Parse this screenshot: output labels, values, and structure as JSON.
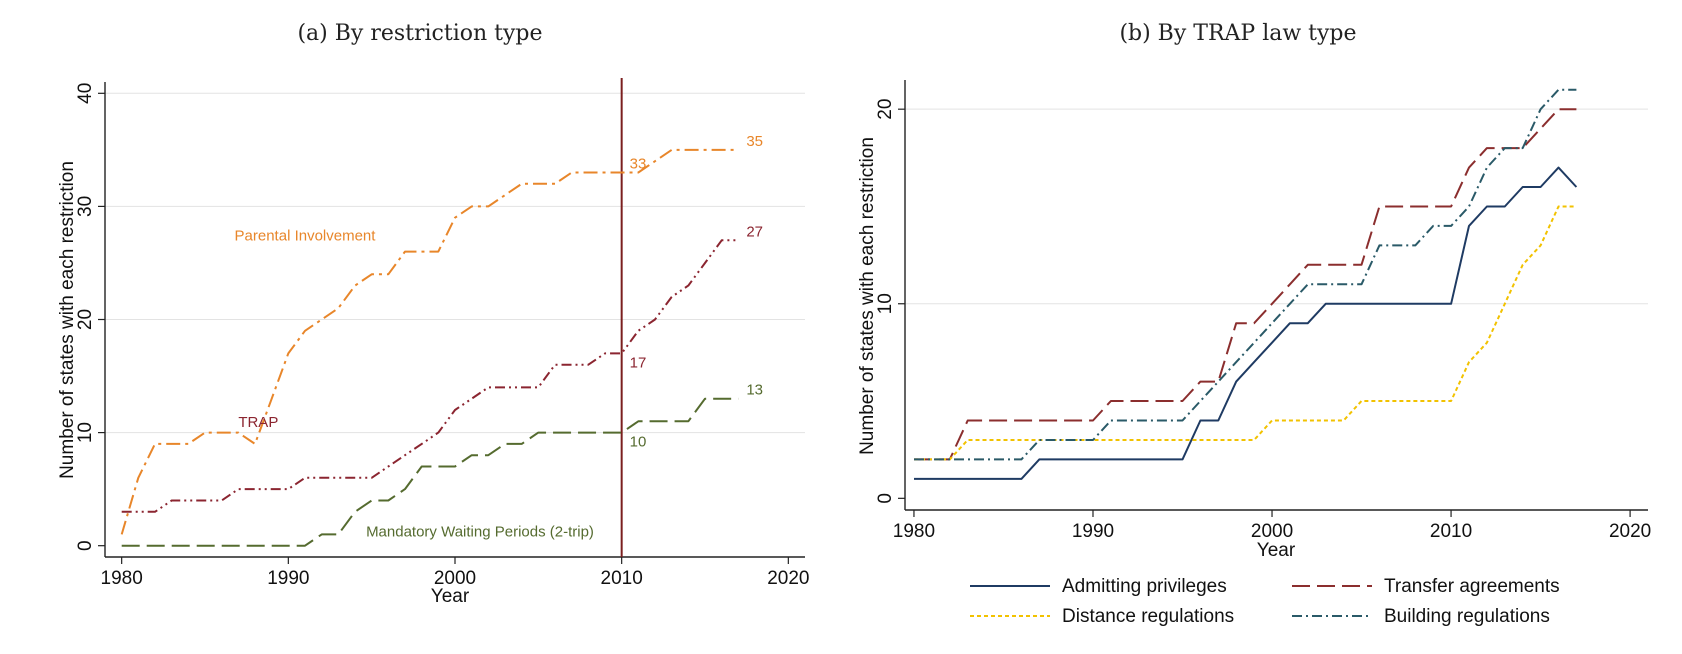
{
  "chart_data": [
    {
      "type": "line",
      "title": "(a) By restriction type",
      "xlabel": "Year",
      "ylabel": "Number of states with each restriction",
      "xlim": [
        1979,
        2021
      ],
      "ylim": [
        -1,
        41
      ],
      "xticks": [
        1980,
        1990,
        2000,
        2010,
        2020
      ],
      "yticks": [
        0,
        10,
        20,
        30,
        40
      ],
      "grid": "horizontal",
      "vline": 2010,
      "vline_color": "#7b1f1f",
      "x": [
        1980,
        1981,
        1982,
        1983,
        1984,
        1985,
        1986,
        1987,
        1988,
        1989,
        1990,
        1991,
        1992,
        1993,
        1994,
        1995,
        1996,
        1997,
        1998,
        1999,
        2000,
        2001,
        2002,
        2003,
        2004,
        2005,
        2006,
        2007,
        2008,
        2009,
        2010,
        2011,
        2012,
        2013,
        2014,
        2015,
        2016,
        2017
      ],
      "series": [
        {
          "name": "Parental Involvement",
          "color": "#e8862a",
          "dash": "long-dash-dot",
          "values": [
            1,
            6,
            9,
            9,
            9,
            10,
            10,
            10,
            9,
            13,
            17,
            19,
            20,
            21,
            23,
            24,
            24,
            26,
            26,
            26,
            29,
            30,
            30,
            31,
            32,
            32,
            32,
            33,
            33,
            33,
            33,
            33,
            34,
            35,
            35,
            35,
            35,
            35
          ],
          "label_pos": {
            "x": 1991,
            "y": 27,
            "anchor": "middle"
          },
          "end_labels": [
            {
              "x": 2010,
              "v": "33"
            },
            {
              "x": 2017,
              "v": "35"
            }
          ]
        },
        {
          "name": "TRAP",
          "color": "#8b2530",
          "dash": "dash-dot-dot",
          "values": [
            3,
            3,
            3,
            4,
            4,
            4,
            4,
            5,
            5,
            5,
            5,
            6,
            6,
            6,
            6,
            6,
            7,
            8,
            9,
            10,
            12,
            13,
            14,
            14,
            14,
            14,
            16,
            16,
            16,
            17,
            17,
            19,
            20,
            22,
            23,
            25,
            27,
            27
          ],
          "label_pos": {
            "x": 1988.2,
            "y": 10.5,
            "anchor": "middle"
          },
          "end_labels": [
            {
              "x": 2010,
              "v": "17"
            },
            {
              "x": 2017,
              "v": "27"
            }
          ]
        },
        {
          "name": "Mandatory Waiting Periods (2-trip)",
          "color": "#556b2f",
          "dash": "long-dash",
          "values": [
            0,
            0,
            0,
            0,
            0,
            0,
            0,
            0,
            0,
            0,
            0,
            0,
            1,
            1,
            3,
            4,
            4,
            5,
            7,
            7,
            7,
            8,
            8,
            9,
            9,
            10,
            10,
            10,
            10,
            10,
            10,
            11,
            11,
            11,
            11,
            13,
            13,
            13
          ],
          "label_pos": {
            "x": 2001.5,
            "y": 0.8,
            "anchor": "middle"
          },
          "end_labels": [
            {
              "x": 2010,
              "v": "10"
            },
            {
              "x": 2017,
              "v": "13"
            }
          ]
        }
      ]
    },
    {
      "type": "line",
      "title": "(b) By TRAP law type",
      "xlabel": "Year",
      "ylabel": "Number of states with each restriction",
      "xlim": [
        1979.5,
        2021
      ],
      "ylim": [
        -0.6,
        21.5
      ],
      "xticks": [
        1980,
        1990,
        2000,
        2010,
        2020
      ],
      "yticks": [
        0,
        10,
        20
      ],
      "grid": "horizontal",
      "legend": "bottom",
      "x": [
        1980,
        1981,
        1982,
        1983,
        1984,
        1985,
        1986,
        1987,
        1988,
        1989,
        1990,
        1991,
        1992,
        1993,
        1994,
        1995,
        1996,
        1997,
        1998,
        1999,
        2000,
        2001,
        2002,
        2003,
        2004,
        2005,
        2006,
        2007,
        2008,
        2009,
        2010,
        2011,
        2012,
        2013,
        2014,
        2015,
        2016,
        2017
      ],
      "series": [
        {
          "name": "Admitting privileges",
          "color": "#1f3b63",
          "dash": "solid",
          "values": [
            1,
            1,
            1,
            1,
            1,
            1,
            1,
            2,
            2,
            2,
            2,
            2,
            2,
            2,
            2,
            2,
            4,
            4,
            6,
            7,
            8,
            9,
            9,
            10,
            10,
            10,
            10,
            10,
            10,
            10,
            10,
            14,
            15,
            15,
            16,
            16,
            17,
            16
          ]
        },
        {
          "name": "Transfer agreements",
          "color": "#8b2e2e",
          "dash": "long-dash",
          "values": [
            2,
            2,
            2,
            4,
            4,
            4,
            4,
            4,
            4,
            4,
            4,
            5,
            5,
            5,
            5,
            5,
            6,
            6,
            9,
            9,
            10,
            11,
            12,
            12,
            12,
            12,
            15,
            15,
            15,
            15,
            15,
            17,
            18,
            18,
            18,
            19,
            20,
            20
          ]
        },
        {
          "name": "Distance regulations",
          "color": "#f2c200",
          "dash": "dotted",
          "values": [
            2,
            2,
            2,
            3,
            3,
            3,
            3,
            3,
            3,
            3,
            3,
            3,
            3,
            3,
            3,
            3,
            3,
            3,
            3,
            3,
            4,
            4,
            4,
            4,
            4,
            5,
            5,
            5,
            5,
            5,
            5,
            7,
            8,
            10,
            12,
            13,
            15,
            15
          ]
        },
        {
          "name": "Building regulations",
          "color": "#2a5a68",
          "dash": "dash-dot",
          "values": [
            2,
            2,
            2,
            2,
            2,
            2,
            2,
            3,
            3,
            3,
            3,
            4,
            4,
            4,
            4,
            4,
            5,
            6,
            7,
            8,
            9,
            10,
            11,
            11,
            11,
            11,
            13,
            13,
            13,
            14,
            14,
            15,
            17,
            18,
            18,
            20,
            21,
            21
          ]
        }
      ]
    }
  ]
}
